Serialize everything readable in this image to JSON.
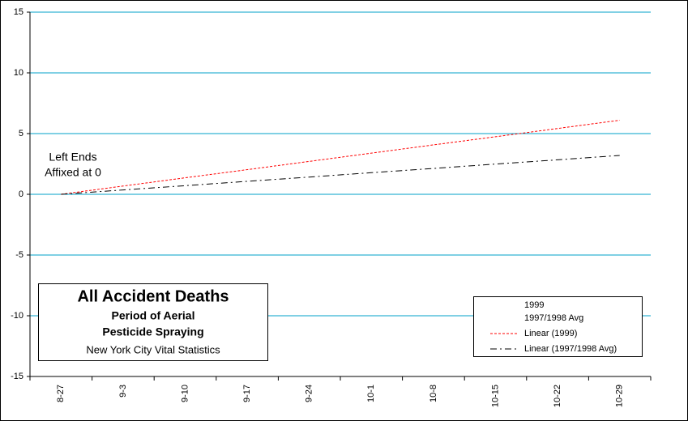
{
  "chart_data": {
    "type": "line",
    "title": "All Accident Deaths",
    "subtitle": [
      "Period of Aerial",
      "Pesticide Spraying"
    ],
    "source": "New York City Vital Statistics",
    "annotation": [
      "Left Ends",
      "Affixed at 0"
    ],
    "categories": [
      "8-27",
      "9-3",
      "9-10",
      "9-17",
      "9-24",
      "10-1",
      "10-8",
      "10-15",
      "10-22",
      "10-29"
    ],
    "series": [
      {
        "name": "1999",
        "color": "none",
        "values": [
          null,
          null,
          null,
          null,
          null,
          null,
          null,
          null,
          null,
          null
        ]
      },
      {
        "name": "1997/1998 Avg",
        "color": "none",
        "values": [
          null,
          null,
          null,
          null,
          null,
          null,
          null,
          null,
          null,
          null
        ]
      },
      {
        "name": "Linear (1999)",
        "color": "#ff0000",
        "dash": "3,2",
        "values": [
          0,
          0.68,
          1.36,
          2.03,
          2.71,
          3.39,
          4.07,
          4.74,
          5.42,
          6.1
        ]
      },
      {
        "name": "Linear (1997/1998 Avg)",
        "color": "#000000",
        "dash": "8,4,2,4",
        "values": [
          0,
          0.36,
          0.71,
          1.07,
          1.42,
          1.78,
          2.13,
          2.49,
          2.84,
          3.2
        ]
      }
    ],
    "ylim": [
      -15,
      15
    ],
    "yticks": [
      -15,
      -10,
      -5,
      0,
      5,
      10,
      15
    ],
    "grid": true,
    "grid_color": "#00a0c8",
    "legend": "lower right"
  }
}
